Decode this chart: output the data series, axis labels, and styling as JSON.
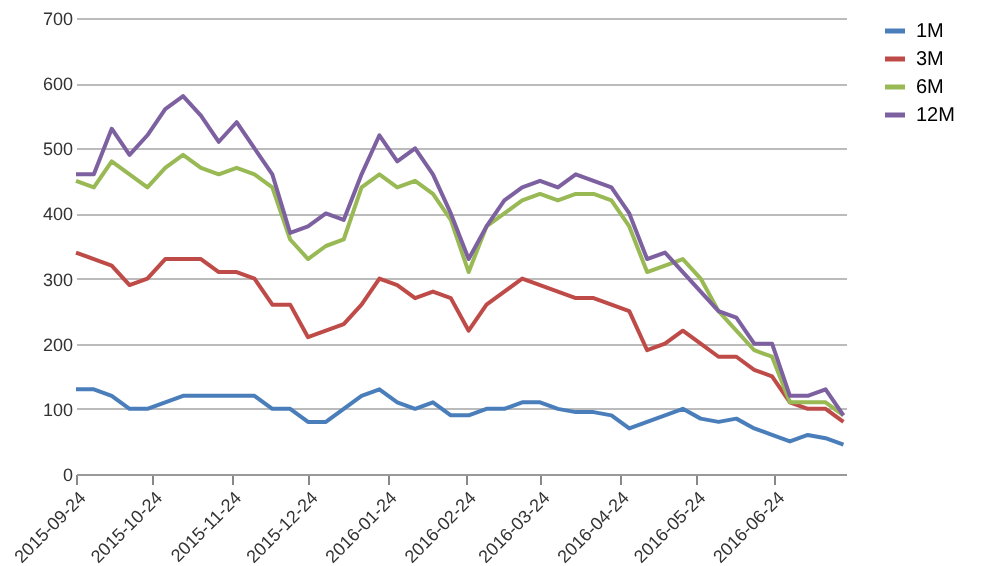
{
  "chart_data": {
    "type": "line",
    "x": [
      "2015-09-24",
      "2015-10-01",
      "2015-10-08",
      "2015-10-15",
      "2015-10-22",
      "2015-10-29",
      "2015-11-05",
      "2015-11-12",
      "2015-11-19",
      "2015-11-26",
      "2015-12-03",
      "2015-12-10",
      "2015-12-17",
      "2015-12-24",
      "2015-12-31",
      "2016-01-07",
      "2016-01-14",
      "2016-01-21",
      "2016-01-28",
      "2016-02-04",
      "2016-02-11",
      "2016-02-18",
      "2016-02-25",
      "2016-03-03",
      "2016-03-10",
      "2016-03-17",
      "2016-03-24",
      "2016-03-31",
      "2016-04-07",
      "2016-04-14",
      "2016-04-21",
      "2016-04-28",
      "2016-05-05",
      "2016-05-12",
      "2016-05-19",
      "2016-05-26",
      "2016-06-02",
      "2016-06-09",
      "2016-06-16",
      "2016-06-23",
      "2016-06-30",
      "2016-07-07",
      "2016-07-14",
      "2016-07-21"
    ],
    "series": [
      {
        "name": "1M",
        "color": "#4a7ebb",
        "values": [
          130,
          130,
          120,
          100,
          100,
          110,
          120,
          120,
          120,
          120,
          120,
          100,
          100,
          80,
          80,
          100,
          120,
          130,
          110,
          100,
          110,
          90,
          90,
          100,
          100,
          110,
          110,
          100,
          95,
          95,
          90,
          70,
          80,
          90,
          100,
          85,
          80,
          85,
          70,
          60,
          50,
          60,
          55,
          45
        ]
      },
      {
        "name": "3M",
        "color": "#be4b48",
        "values": [
          340,
          330,
          320,
          290,
          300,
          330,
          330,
          330,
          310,
          310,
          300,
          260,
          260,
          210,
          220,
          230,
          260,
          300,
          290,
          270,
          280,
          270,
          220,
          260,
          280,
          300,
          290,
          280,
          270,
          270,
          260,
          250,
          190,
          200,
          220,
          200,
          180,
          180,
          160,
          150,
          110,
          100,
          100,
          80
        ]
      },
      {
        "name": "6M",
        "color": "#98b954",
        "values": [
          450,
          440,
          480,
          460,
          440,
          470,
          490,
          470,
          460,
          470,
          460,
          440,
          360,
          330,
          350,
          360,
          440,
          460,
          440,
          450,
          430,
          390,
          310,
          380,
          400,
          420,
          430,
          420,
          430,
          430,
          420,
          380,
          310,
          320,
          330,
          300,
          250,
          220,
          190,
          180,
          110,
          110,
          110,
          90
        ]
      },
      {
        "name": "12M",
        "color": "#7d60a0",
        "values": [
          460,
          460,
          530,
          490,
          520,
          560,
          580,
          550,
          510,
          540,
          500,
          460,
          370,
          380,
          400,
          390,
          460,
          520,
          480,
          500,
          460,
          400,
          330,
          380,
          420,
          440,
          450,
          440,
          460,
          450,
          440,
          400,
          330,
          340,
          310,
          280,
          250,
          240,
          200,
          200,
          120,
          120,
          130,
          90
        ]
      }
    ],
    "xlim": [
      "2015-09-24",
      "2016-07-22"
    ],
    "xticks": [
      "2015-09-24",
      "2015-10-24",
      "2015-11-24",
      "2015-12-24",
      "2016-01-24",
      "2016-02-24",
      "2016-03-24",
      "2016-04-24",
      "2016-05-24",
      "2016-06-24"
    ],
    "ylim": [
      0,
      700
    ],
    "yticks": [
      0,
      100,
      200,
      300,
      400,
      500,
      600,
      700
    ],
    "grid": "y",
    "legend": "right",
    "marker": "none",
    "line_style": "solid"
  }
}
